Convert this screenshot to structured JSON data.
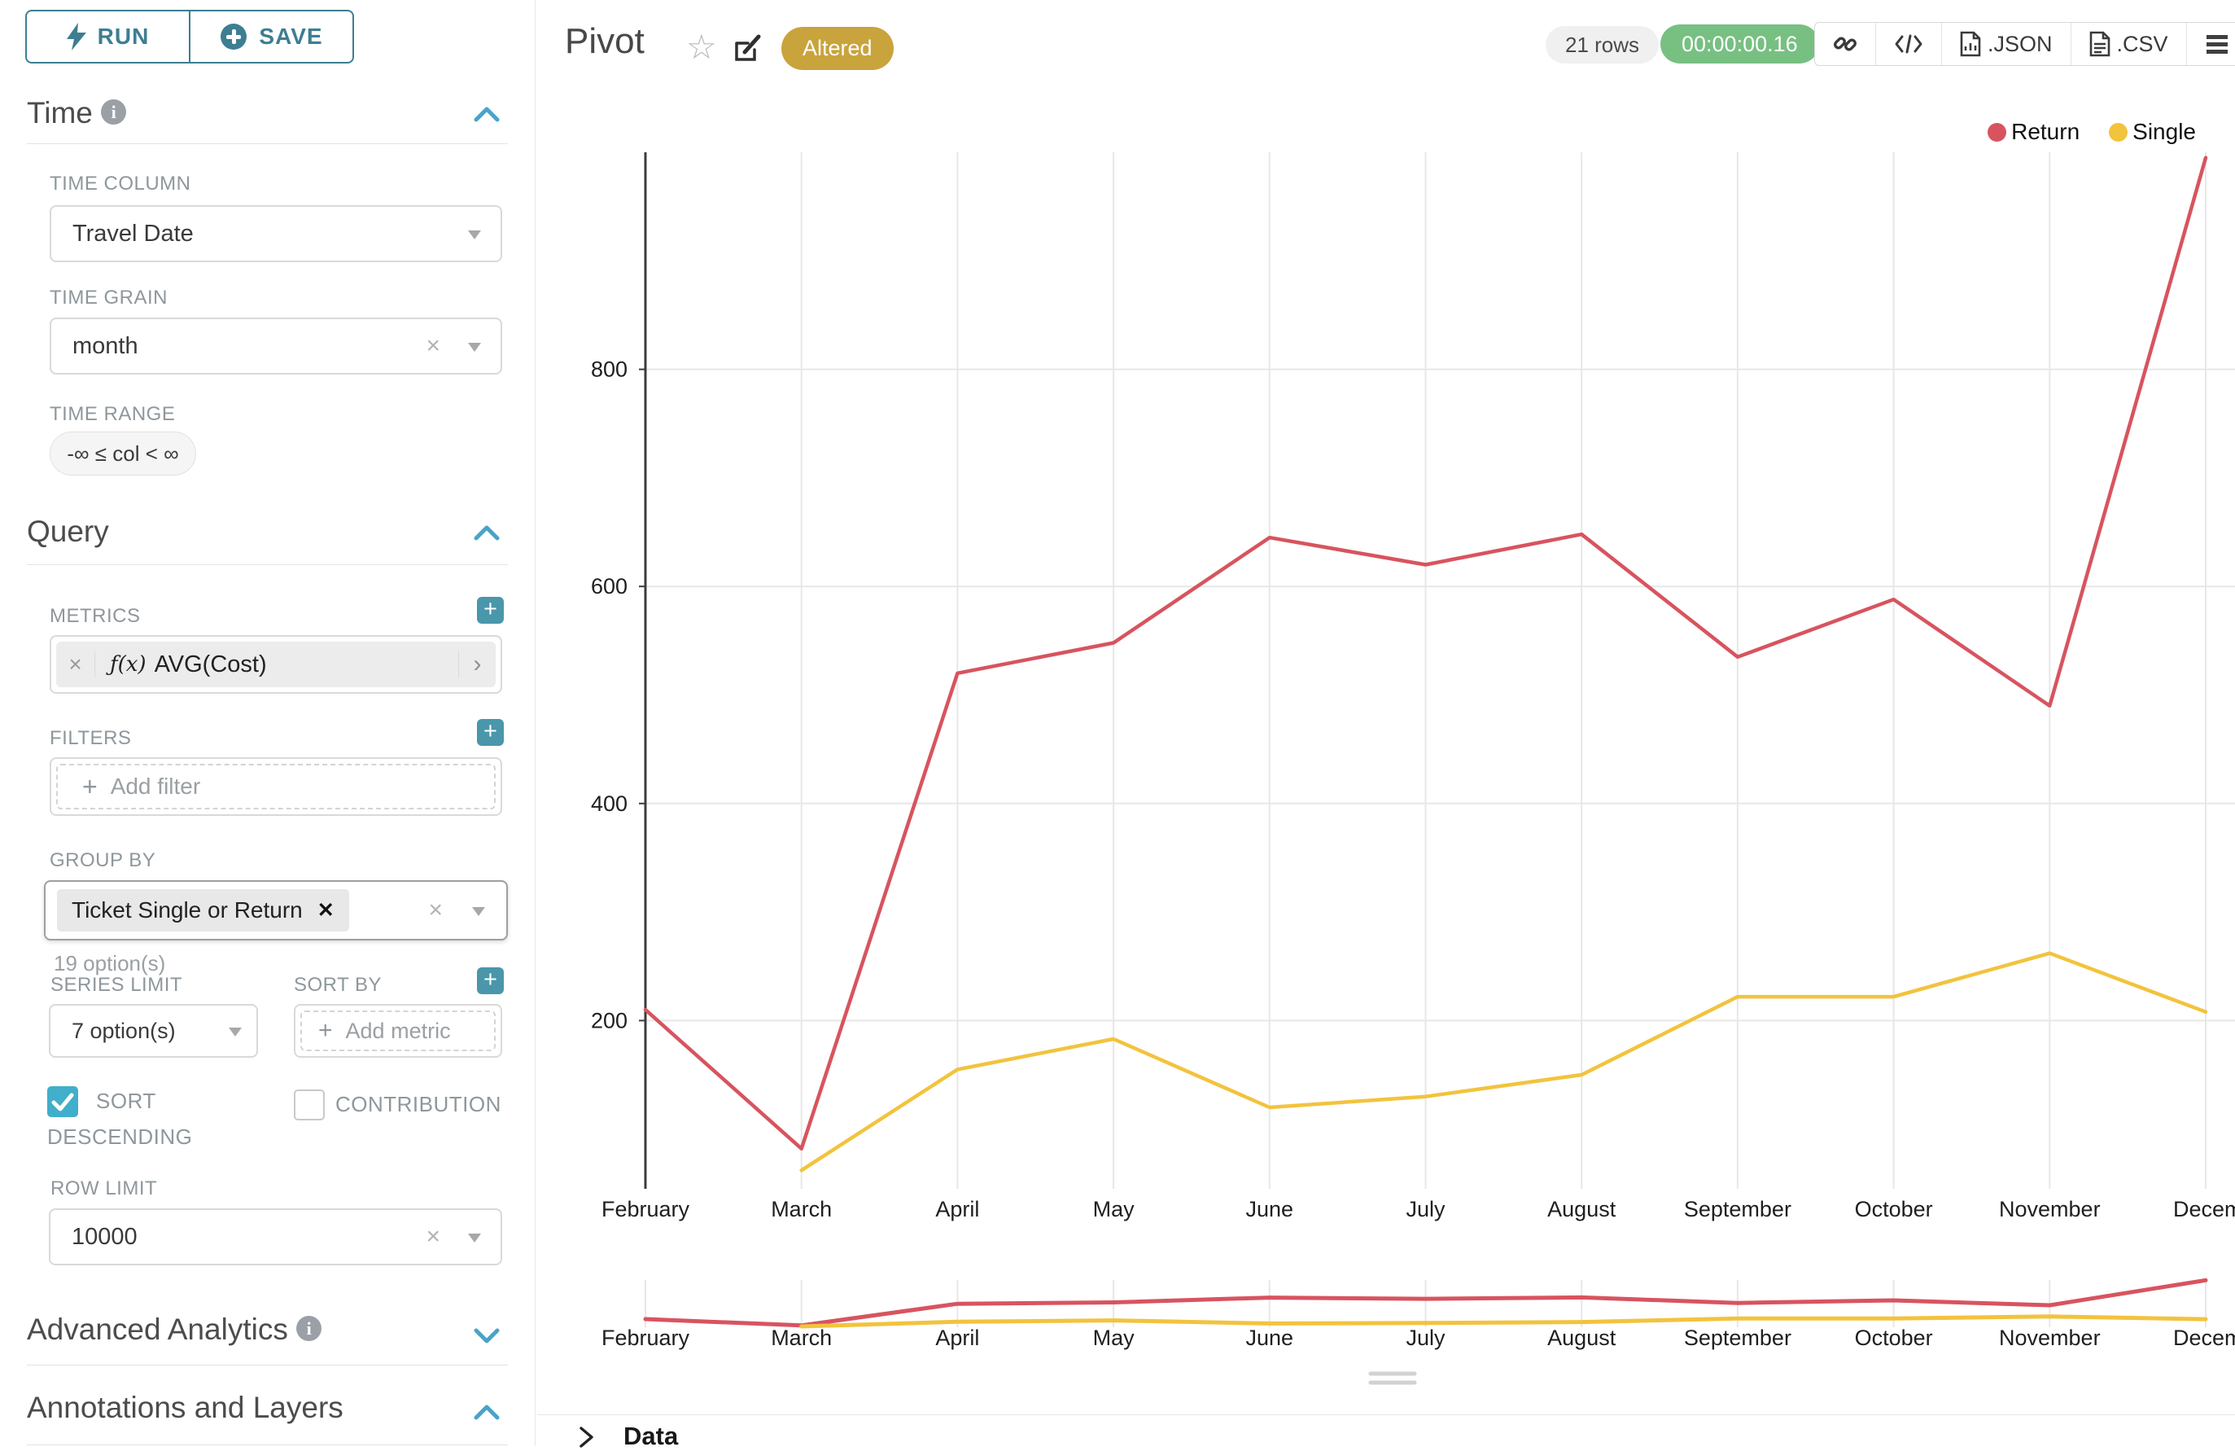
{
  "toolbar": {
    "run_label": "RUN",
    "save_label": "SAVE"
  },
  "sidebar": {
    "time": {
      "title": "Time",
      "column_label": "TIME COLUMN",
      "column_value": "Travel Date",
      "grain_label": "TIME GRAIN",
      "grain_value": "month",
      "range_label": "TIME RANGE",
      "range_value": "-∞ ≤ col < ∞"
    },
    "query": {
      "title": "Query",
      "metrics_label": "METRICS",
      "metric_fx": "ƒ(x)",
      "metric_name": "AVG(Cost)",
      "filters_label": "FILTERS",
      "add_filter": "Add filter",
      "groupby_label": "GROUP BY",
      "groupby_token": "Ticket Single or Return",
      "groupby_hint": "19 option(s)",
      "series_limit_label": "SERIES LIMIT",
      "series_limit_value": "7 option(s)",
      "sort_by_label": "SORT BY",
      "add_metric": "Add metric",
      "sort_descending_label": "SORT DESCENDING",
      "contribution_label": "CONTRIBUTION",
      "row_limit_label": "ROW LIMIT",
      "row_limit_value": "10000"
    },
    "advanced_title": "Advanced Analytics",
    "annotations_title": "Annotations and Layers"
  },
  "header": {
    "title": "Pivot",
    "badge": "Altered",
    "rows": "21 rows",
    "timer": "00:00:00.16",
    "export_json": ".JSON",
    "export_csv": ".CSV"
  },
  "data_panel": {
    "label": "Data"
  },
  "chart_data": {
    "type": "line",
    "x": [
      "February",
      "March",
      "April",
      "May",
      "June",
      "July",
      "August",
      "September",
      "October",
      "November",
      "December"
    ],
    "series": [
      {
        "name": "Return",
        "color": "#d7545f",
        "values": [
          210,
          82,
          520,
          548,
          645,
          620,
          648,
          535,
          588,
          490,
          995
        ]
      },
      {
        "name": "Single",
        "color": "#f2c33d",
        "values": [
          null,
          62,
          155,
          183,
          120,
          130,
          150,
          222,
          222,
          262,
          208
        ]
      }
    ],
    "yticks": [
      200,
      400,
      600,
      800
    ],
    "ylim": [
      45,
      1000
    ],
    "grid": true,
    "legend_position": "top-right",
    "has_context_brush": true
  }
}
